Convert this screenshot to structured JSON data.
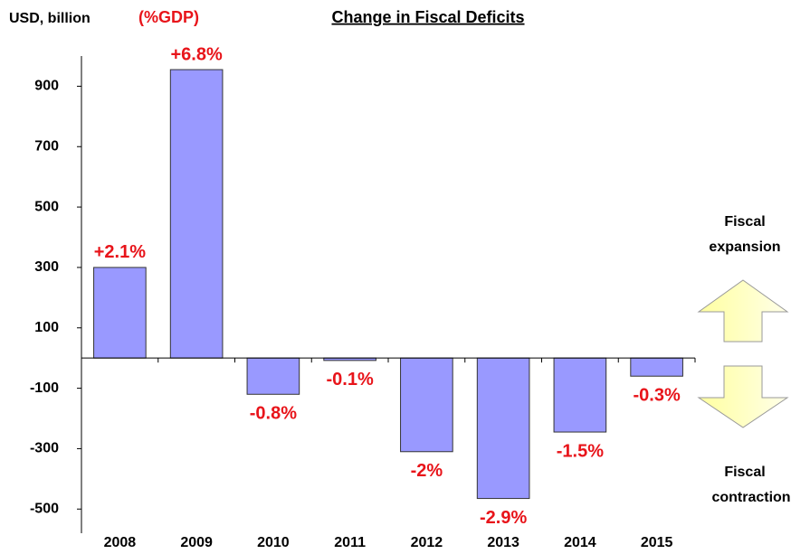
{
  "chart_data": {
    "type": "bar",
    "title": "Change in Fiscal Deficits",
    "y_axis_label": "USD, billion",
    "label_unit": "(%GDP)",
    "categories": [
      "2008",
      "2009",
      "2010",
      "2011",
      "2012",
      "2013",
      "2014",
      "2015"
    ],
    "values": [
      300,
      955,
      -120,
      -8,
      -310,
      -465,
      -245,
      -60
    ],
    "pct_labels": [
      "+2.1%",
      "+6.8%",
      "-0.8%",
      "-0.1%",
      "-2%",
      "-2.9%",
      "-1.5%",
      "-0.3%"
    ],
    "color": "#9999ff",
    "ylim": [
      -580,
      1000
    ],
    "yticks": [
      -500,
      -300,
      -100,
      100,
      300,
      500,
      700,
      900
    ],
    "annotations": {
      "expansion": [
        "Fiscal",
        "expansion"
      ],
      "contraction": [
        "Fiscal",
        "contraction"
      ]
    }
  }
}
